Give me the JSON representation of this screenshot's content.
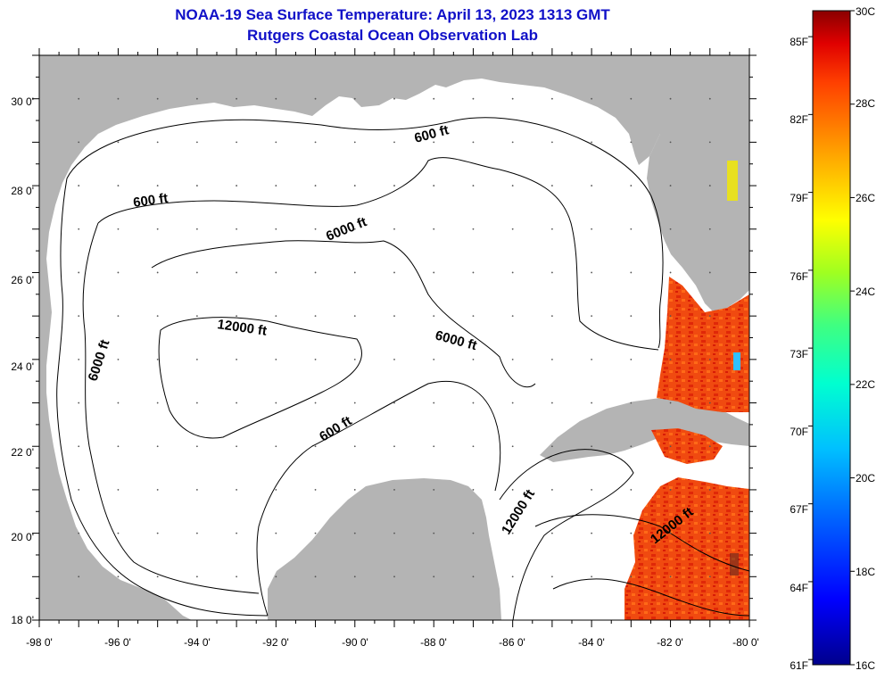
{
  "header": {
    "title": "NOAA-19 Sea Surface Temperature:  April 13, 2023 1313 GMT",
    "subtitle": "Rutgers Coastal Ocean Observation Lab"
  },
  "axes": {
    "lon_ticks": [
      "-98 0'",
      "-96 0'",
      "-94 0'",
      "-92 0'",
      "-90 0'",
      "-88 0'",
      "-86 0'",
      "-84 0'",
      "-82 0'",
      "-80 0'"
    ],
    "lat_ticks": [
      "18 0'",
      "20 0'",
      "22 0'",
      "24 0'",
      "26 0'",
      "28 0'",
      "30 0'"
    ],
    "lon_range": [
      -98,
      -80
    ],
    "lat_range": [
      18,
      31
    ]
  },
  "contours": {
    "labels": [
      {
        "text": "600 ft"
      },
      {
        "text": "600 ft"
      },
      {
        "text": "6000 ft"
      },
      {
        "text": "12000 ft"
      },
      {
        "text": "6000 ft"
      },
      {
        "text": "6000 ft"
      },
      {
        "text": "600 ft"
      },
      {
        "text": "12000 ft"
      },
      {
        "text": "12000 ft"
      }
    ]
  },
  "colorbar": {
    "celsius": [
      "30C",
      "28C",
      "26C",
      "24C",
      "22C",
      "20C",
      "18C",
      "16C"
    ],
    "fahrenheit": [
      "85F",
      "82F",
      "79F",
      "76F",
      "73F",
      "70F",
      "67F",
      "64F",
      "61F"
    ],
    "range_c": [
      16,
      30
    ],
    "colors": [
      "#00008c",
      "#0000ff",
      "#0060ff",
      "#00c0ff",
      "#00ffd0",
      "#40ff80",
      "#a0ff20",
      "#ffff00",
      "#ffc000",
      "#ff8000",
      "#ff4000",
      "#e00000",
      "#8a0000"
    ]
  },
  "colors": {
    "land": "#b4b4b4",
    "ocean": "#ffffff",
    "title": "#1010c8"
  }
}
